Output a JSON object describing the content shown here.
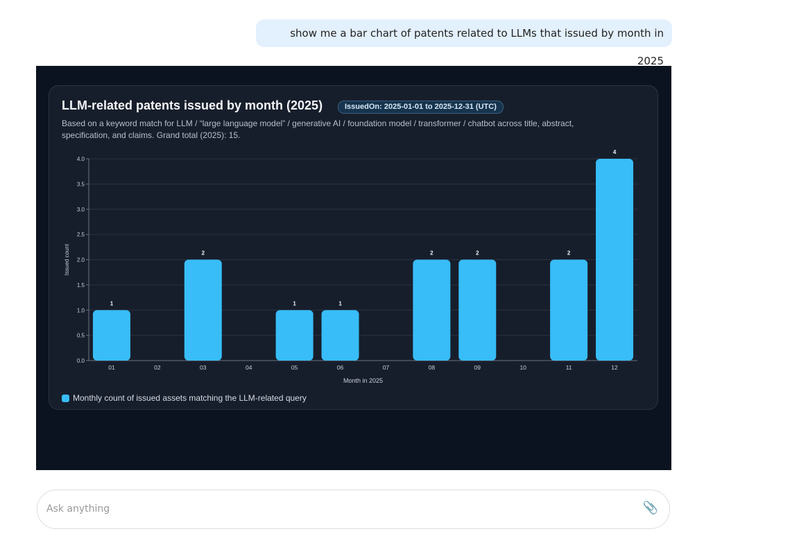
{
  "user_message": "show me a bar chart of patents related to LLMs that issued by month in 2025",
  "card": {
    "title": "LLM-related patents issued by month (2025)",
    "badge": "IssuedOn: 2025-01-01 to 2025-12-31 (UTC)",
    "description": "Based on a keyword match for LLM / “large language model” / generative AI / foundation model / transformer / chatbot across title, abstract, specification, and claims. Grand total (2025): 15."
  },
  "chart_data": {
    "type": "bar",
    "categories": [
      "01",
      "02",
      "03",
      "04",
      "05",
      "06",
      "07",
      "08",
      "09",
      "10",
      "11",
      "12"
    ],
    "series": [
      {
        "name": "Monthly count of issued assets matching the LLM-related query",
        "values": [
          1,
          0,
          2,
          0,
          1,
          1,
          0,
          2,
          2,
          0,
          2,
          4
        ]
      }
    ],
    "xlabel": "Month in 2025",
    "ylabel": "Issued count",
    "ylim": [
      0,
      4
    ],
    "yticks": [
      "0.0",
      "0.5",
      "1.0",
      "1.5",
      "2.0",
      "2.5",
      "3.0",
      "3.5",
      "4.0"
    ],
    "grid": true,
    "legend": "bottom-left",
    "bar_color": "#38bdf8",
    "data_labels": true
  },
  "input": {
    "placeholder": "Ask anything",
    "attach_icon": "paperclip-icon"
  }
}
